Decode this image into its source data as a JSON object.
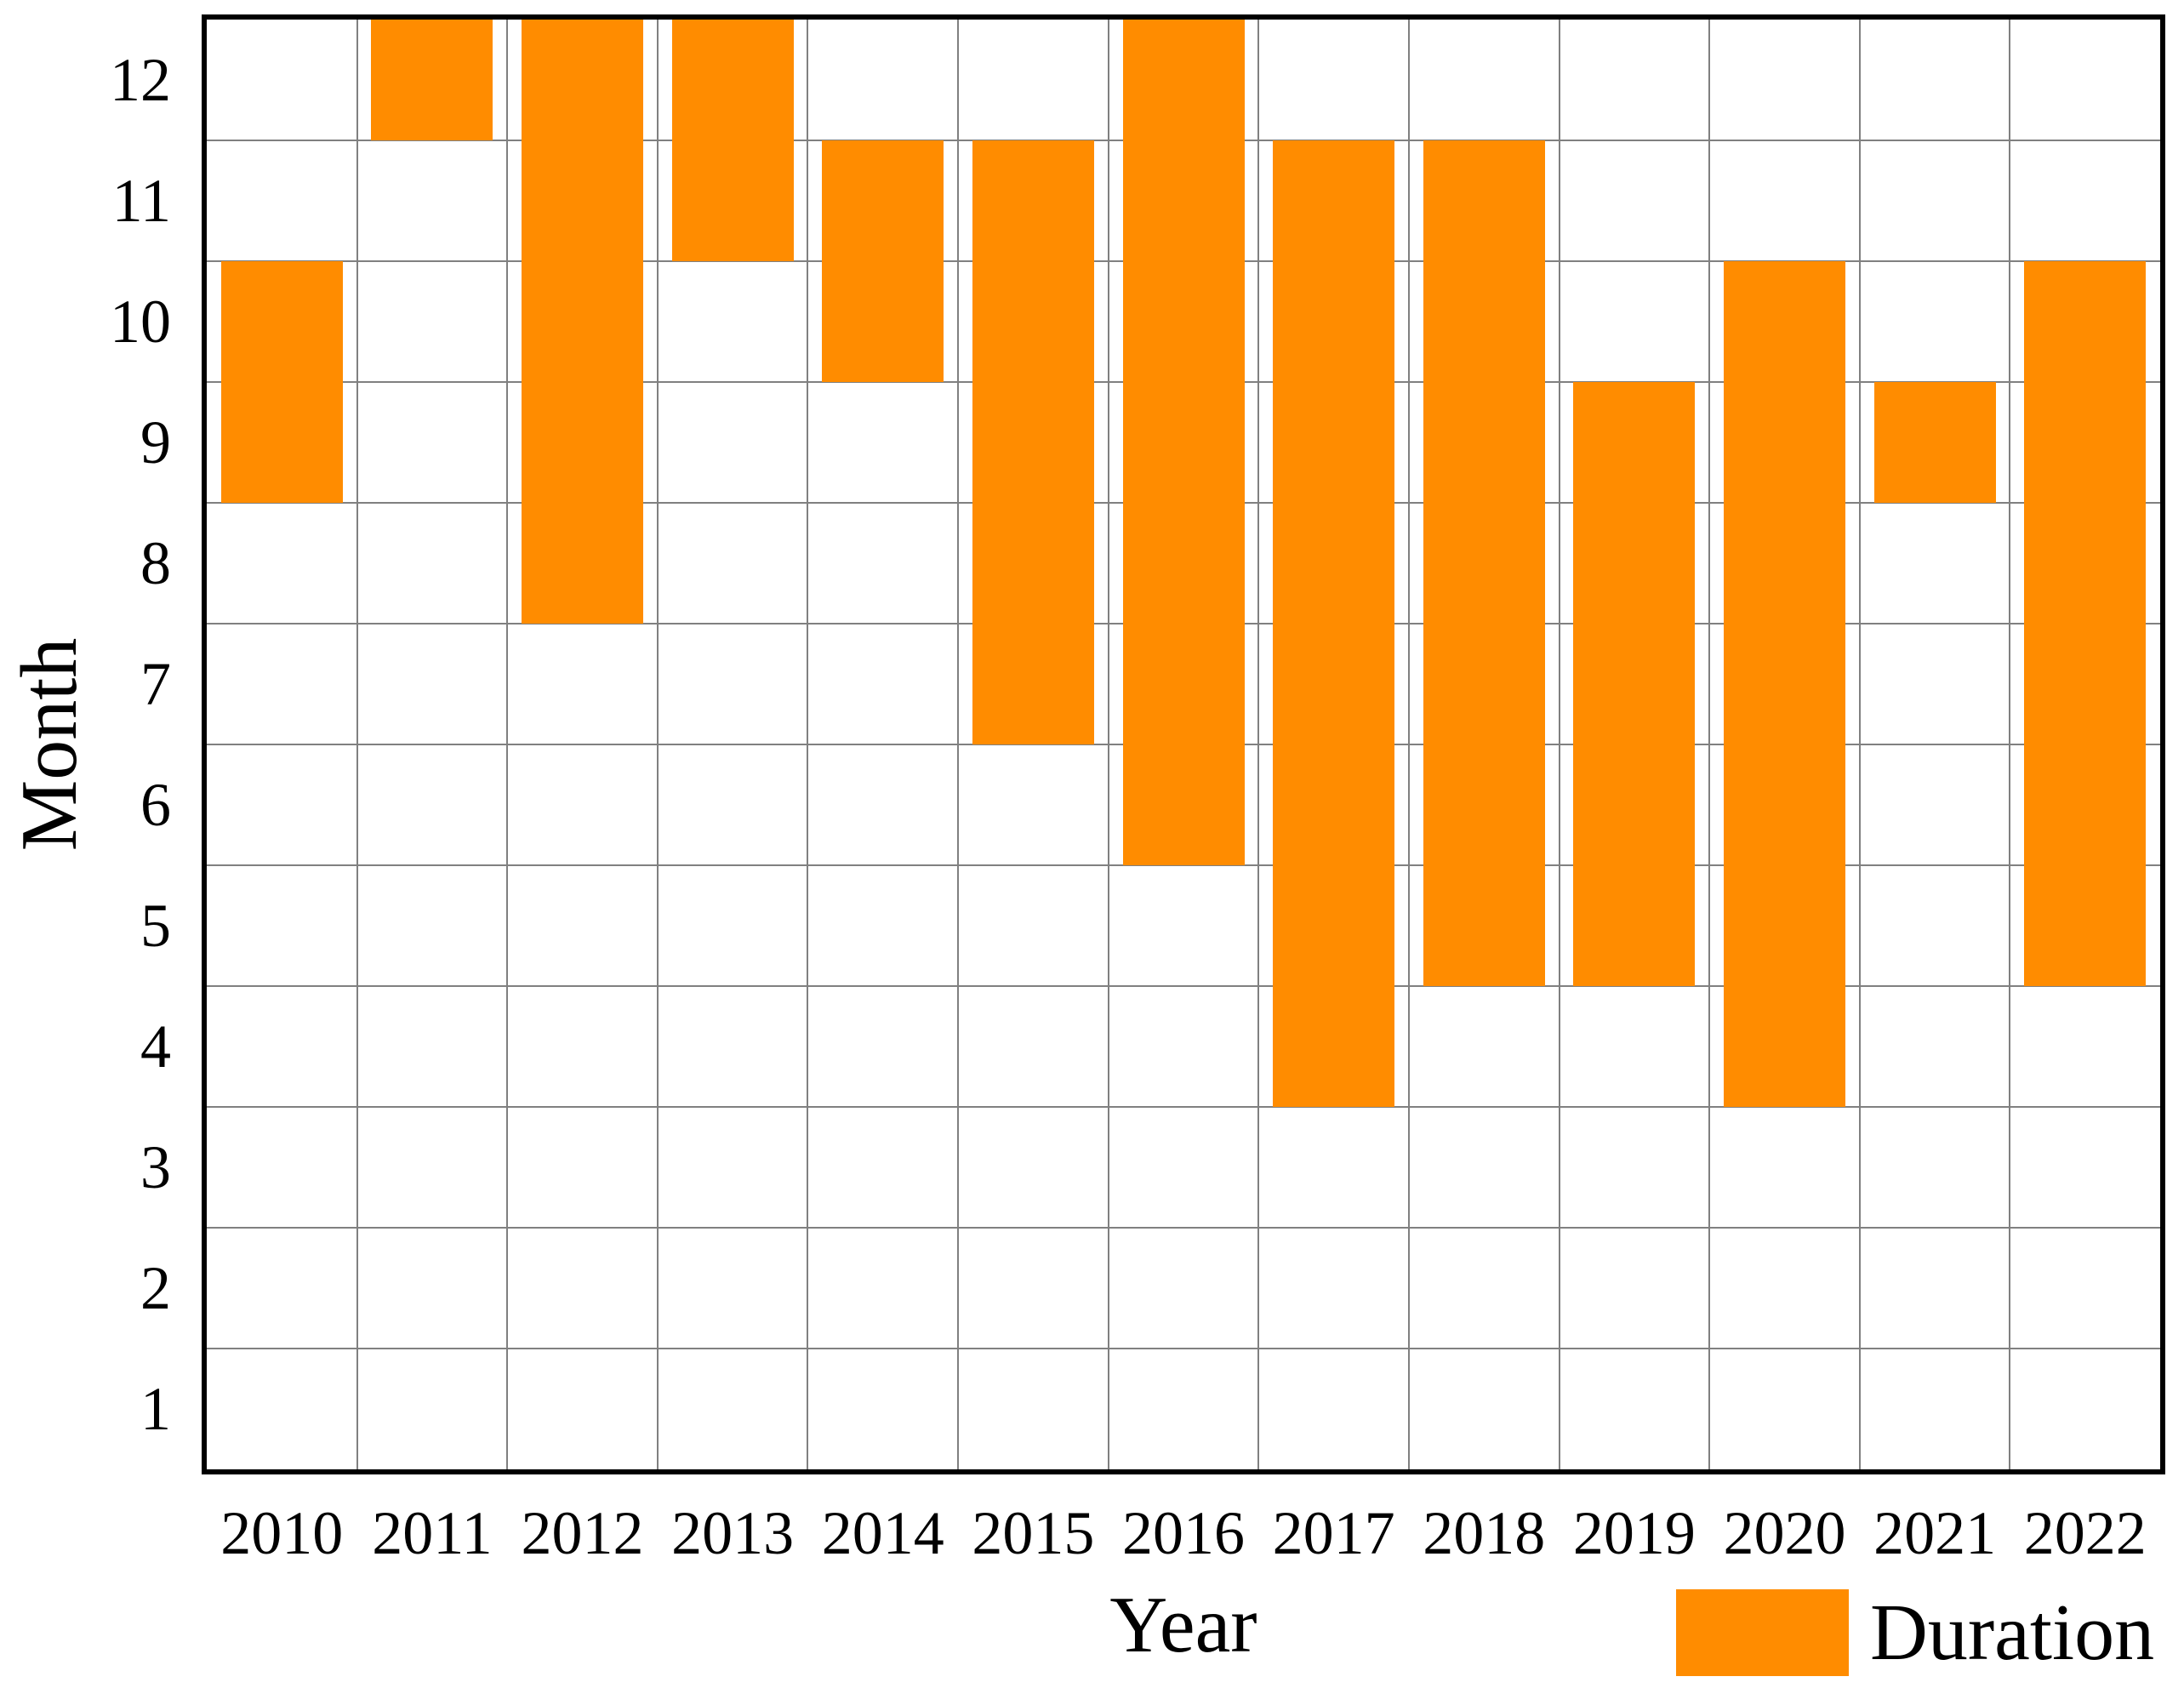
{
  "chart_data": {
    "type": "bar",
    "subtype": "floating_column_month_ranges",
    "title": "",
    "xlabel": "Year",
    "ylabel": "Month",
    "x_tick_labels": [
      "2010",
      "2011",
      "2012",
      "2013",
      "2014",
      "2015",
      "2016",
      "2017",
      "2018",
      "2019",
      "2020",
      "2021",
      "2022"
    ],
    "y_tick_labels": [
      "1",
      "2",
      "3",
      "4",
      "5",
      "6",
      "7",
      "8",
      "9",
      "10",
      "11",
      "12"
    ],
    "ylim": [
      0.5,
      12.5
    ],
    "grid": true,
    "gridline_color": "#808080",
    "spine_color": "#000000",
    "background_color": "#ffffff",
    "bar_color": "#FF8C00",
    "legend": {
      "label": "Duration",
      "position": "bottom-right",
      "swatch_color": "#FF8C00"
    },
    "series": [
      {
        "name": "Duration",
        "color": "#FF8C00",
        "points": [
          {
            "year": 2010,
            "start_month": 9,
            "end_month": 10,
            "y_range": [
              8.5,
              10.5
            ]
          },
          {
            "year": 2011,
            "start_month": 12,
            "end_month": 12,
            "y_range": [
              11.5,
              12.5
            ]
          },
          {
            "year": 2012,
            "start_month": 8,
            "end_month": 12,
            "y_range": [
              7.5,
              12.5
            ]
          },
          {
            "year": 2013,
            "start_month": 11,
            "end_month": 12,
            "y_range": [
              10.5,
              12.5
            ]
          },
          {
            "year": 2014,
            "start_month": 10,
            "end_month": 11,
            "y_range": [
              9.5,
              11.5
            ]
          },
          {
            "year": 2015,
            "start_month": 7,
            "end_month": 11,
            "y_range": [
              6.5,
              11.5
            ]
          },
          {
            "year": 2016,
            "start_month": 6,
            "end_month": 12,
            "y_range": [
              5.5,
              12.5
            ]
          },
          {
            "year": 2017,
            "start_month": 4,
            "end_month": 11,
            "y_range": [
              3.5,
              11.5
            ]
          },
          {
            "year": 2018,
            "start_month": 5,
            "end_month": 11,
            "y_range": [
              4.5,
              11.5
            ]
          },
          {
            "year": 2019,
            "start_month": 5,
            "end_month": 9,
            "y_range": [
              4.5,
              9.5
            ]
          },
          {
            "year": 2020,
            "start_month": 4,
            "end_month": 10,
            "y_range": [
              3.5,
              10.5
            ]
          },
          {
            "year": 2021,
            "start_month": 9,
            "end_month": 9,
            "y_range": [
              8.5,
              9.5
            ]
          },
          {
            "year": 2022,
            "start_month": 5,
            "end_month": 10,
            "y_range": [
              4.5,
              10.5
            ]
          }
        ]
      }
    ]
  }
}
